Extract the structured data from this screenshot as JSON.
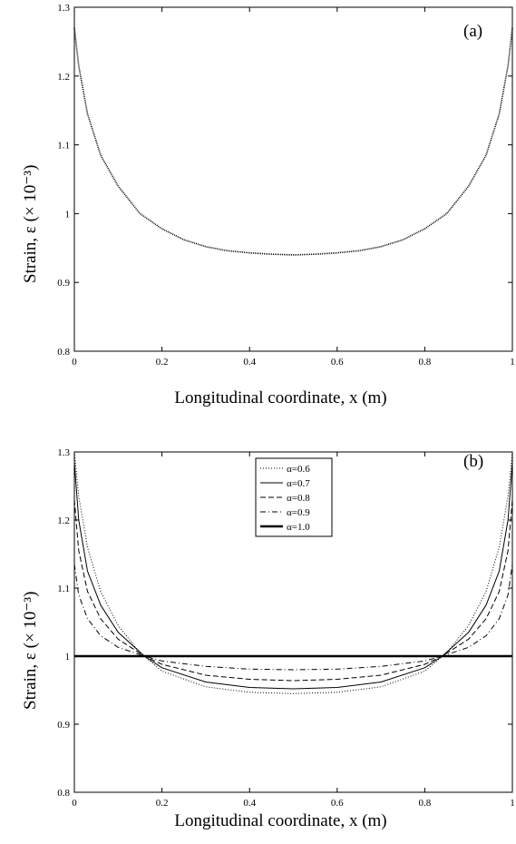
{
  "chart_data": [
    {
      "type": "line",
      "panel_label": "(a)",
      "xlabel": "Longitudinal coordinate, x (m)",
      "ylabel": "Strain, ε (× 10⁻³)",
      "xlim": [
        0,
        1
      ],
      "ylim": [
        0.8,
        1.3
      ],
      "xticks": [
        0,
        0.2,
        0.4,
        0.6,
        0.8,
        1
      ],
      "yticks": [
        0.8,
        0.9,
        1,
        1.1,
        1.2,
        1.3
      ],
      "xtick_labels": [
        "0",
        "0.2",
        "0.4",
        "0.6",
        "0.8",
        "1"
      ],
      "ytick_labels": [
        "0.8",
        "0.9",
        "1",
        "1.1",
        "1.2",
        "1.3"
      ],
      "grid": false,
      "series": [
        {
          "style": "dotted-dense",
          "x": [
            0,
            0.01,
            0.03,
            0.06,
            0.1,
            0.15,
            0.2,
            0.25,
            0.3,
            0.35,
            0.4,
            0.45,
            0.5,
            0.55,
            0.6,
            0.65,
            0.7,
            0.75,
            0.8,
            0.85,
            0.9,
            0.94,
            0.97,
            0.99,
            1
          ],
          "y": [
            1.27,
            1.215,
            1.145,
            1.085,
            1.04,
            1.0,
            0.978,
            0.962,
            0.952,
            0.946,
            0.943,
            0.941,
            0.94,
            0.941,
            0.943,
            0.946,
            0.952,
            0.962,
            0.978,
            1.0,
            1.04,
            1.085,
            1.145,
            1.215,
            1.27
          ]
        }
      ]
    },
    {
      "type": "line",
      "panel_label": "(b)",
      "xlabel": "Longitudinal coordinate, x (m)",
      "ylabel": "Strain, ε (× 10⁻³)",
      "xlim": [
        0,
        1
      ],
      "ylim": [
        0.8,
        1.3
      ],
      "xticks": [
        0,
        0.2,
        0.4,
        0.6,
        0.8,
        1
      ],
      "yticks": [
        0.8,
        0.9,
        1,
        1.1,
        1.2,
        1.3
      ],
      "xtick_labels": [
        "0",
        "0.2",
        "0.4",
        "0.6",
        "0.8",
        "1"
      ],
      "ytick_labels": [
        "0.8",
        "0.9",
        "1",
        "1.1",
        "1.2",
        "1.3"
      ],
      "grid": false,
      "legend_position": "top-center",
      "series": [
        {
          "name": "α=0.6",
          "style": "dotted",
          "x": [
            0,
            0.01,
            0.03,
            0.06,
            0.1,
            0.15,
            0.2,
            0.3,
            0.4,
            0.5,
            0.6,
            0.7,
            0.8,
            0.85,
            0.9,
            0.94,
            0.97,
            0.99,
            1
          ],
          "y": [
            1.3,
            1.235,
            1.16,
            1.095,
            1.045,
            1.005,
            0.978,
            0.955,
            0.947,
            0.945,
            0.947,
            0.955,
            0.978,
            1.005,
            1.045,
            1.095,
            1.16,
            1.235,
            1.3
          ]
        },
        {
          "name": "α=0.7",
          "style": "solid",
          "x": [
            0,
            0.01,
            0.03,
            0.06,
            0.1,
            0.16,
            0.2,
            0.3,
            0.4,
            0.5,
            0.6,
            0.7,
            0.8,
            0.84,
            0.9,
            0.94,
            0.97,
            0.99,
            1
          ],
          "y": [
            1.285,
            1.2,
            1.125,
            1.075,
            1.035,
            1.0,
            0.983,
            0.962,
            0.954,
            0.952,
            0.954,
            0.962,
            0.983,
            1.0,
            1.035,
            1.075,
            1.125,
            1.2,
            1.285
          ]
        },
        {
          "name": "α=0.8",
          "style": "dashed",
          "x": [
            0,
            0.01,
            0.03,
            0.06,
            0.1,
            0.16,
            0.2,
            0.3,
            0.4,
            0.5,
            0.6,
            0.7,
            0.8,
            0.84,
            0.9,
            0.94,
            0.97,
            0.99,
            1
          ],
          "y": [
            1.23,
            1.155,
            1.095,
            1.055,
            1.025,
            1.0,
            0.988,
            0.972,
            0.966,
            0.964,
            0.966,
            0.972,
            0.988,
            1.0,
            1.025,
            1.055,
            1.095,
            1.155,
            1.23
          ]
        },
        {
          "name": "α=0.9",
          "style": "dash-dot",
          "x": [
            0,
            0.01,
            0.03,
            0.06,
            0.1,
            0.16,
            0.2,
            0.3,
            0.4,
            0.5,
            0.6,
            0.7,
            0.8,
            0.84,
            0.9,
            0.94,
            0.97,
            0.99,
            1
          ],
          "y": [
            1.135,
            1.09,
            1.055,
            1.03,
            1.013,
            1.0,
            0.993,
            0.985,
            0.981,
            0.98,
            0.981,
            0.985,
            0.993,
            1.0,
            1.013,
            1.03,
            1.055,
            1.09,
            1.135
          ]
        },
        {
          "name": "α=1.0",
          "style": "solid-thick",
          "x": [
            0,
            1
          ],
          "y": [
            1.0,
            1.0
          ]
        }
      ]
    }
  ]
}
